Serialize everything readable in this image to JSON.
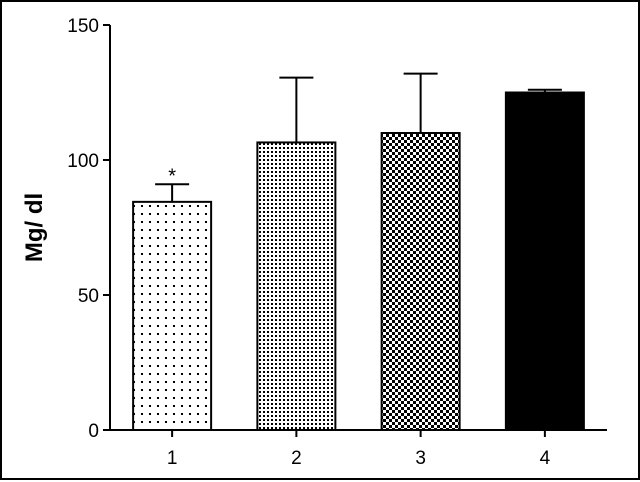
{
  "chart_data": {
    "type": "bar",
    "categories": [
      "1",
      "2",
      "3",
      "4"
    ],
    "values": [
      84.5,
      106.5,
      110,
      125
    ],
    "error_upper": [
      91,
      130.5,
      132,
      126
    ],
    "patterns": [
      "sparse-dots",
      "dense-dots",
      "checker",
      "solid"
    ],
    "bar_colors": [
      "#000000",
      "#000000",
      "#000000",
      "#000000"
    ],
    "ylabel": "Mg/ dl",
    "xlabel": "",
    "title": "",
    "ylim": [
      0,
      150
    ],
    "yticks": [
      0,
      50,
      100,
      150
    ],
    "annotations": [
      {
        "category": "1",
        "text": "*"
      }
    ],
    "grid": false,
    "legend": "none"
  }
}
